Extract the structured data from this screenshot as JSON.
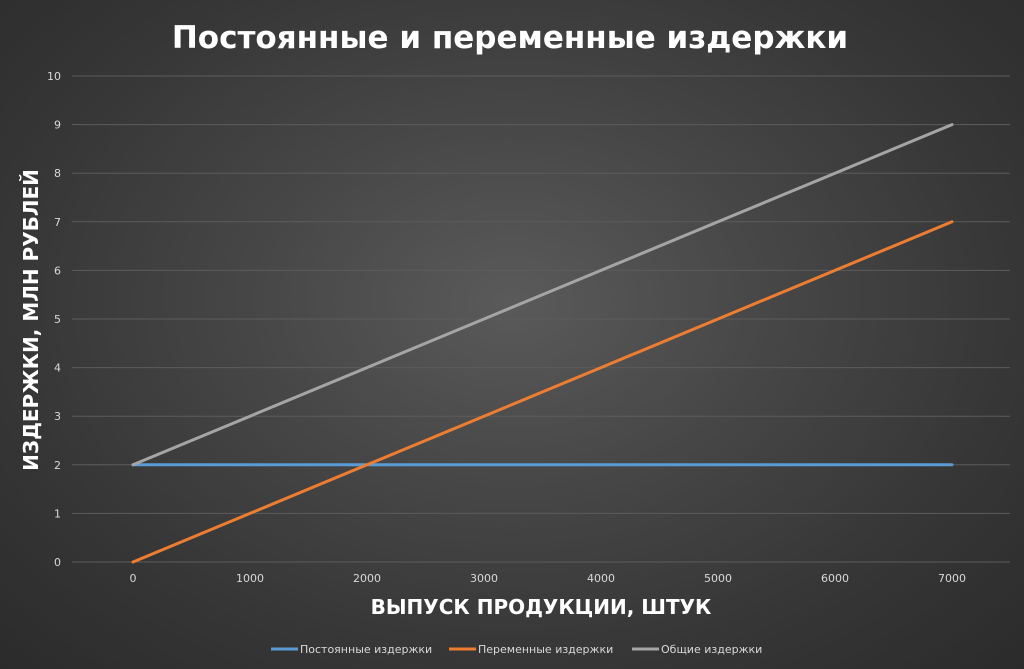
{
  "chart_data": {
    "type": "line",
    "title": "Постоянные и переменные издержки",
    "xlabel": "ВЫПУСК ПРОДУКЦИИ, ШТУК",
    "ylabel": "ИЗДЕРЖКИ, МЛН РУБЛЕЙ",
    "x": [
      0,
      1000,
      2000,
      3000,
      4000,
      5000,
      6000,
      7000
    ],
    "x_tick_labels": [
      "0",
      "1000",
      "2000",
      "3000",
      "4000",
      "5000",
      "6000",
      "7000"
    ],
    "y_tick_labels": [
      "0",
      "1",
      "2",
      "3",
      "4",
      "5",
      "6",
      "7",
      "8",
      "9",
      "10"
    ],
    "ylim": [
      0,
      10
    ],
    "grid": true,
    "legend_position": "bottom",
    "series": [
      {
        "name": "Постоянные издержки",
        "color": "#5b9bd5",
        "values": [
          2,
          2,
          2,
          2,
          2,
          2,
          2,
          2
        ]
      },
      {
        "name": "Переменные издержки",
        "color": "#ed7d31",
        "values": [
          0,
          1,
          2,
          3,
          4,
          5,
          6,
          7
        ]
      },
      {
        "name": "Общие издержки",
        "color": "#a5a5a5",
        "values": [
          2,
          3,
          4,
          5,
          6,
          7,
          8,
          9
        ]
      }
    ]
  }
}
